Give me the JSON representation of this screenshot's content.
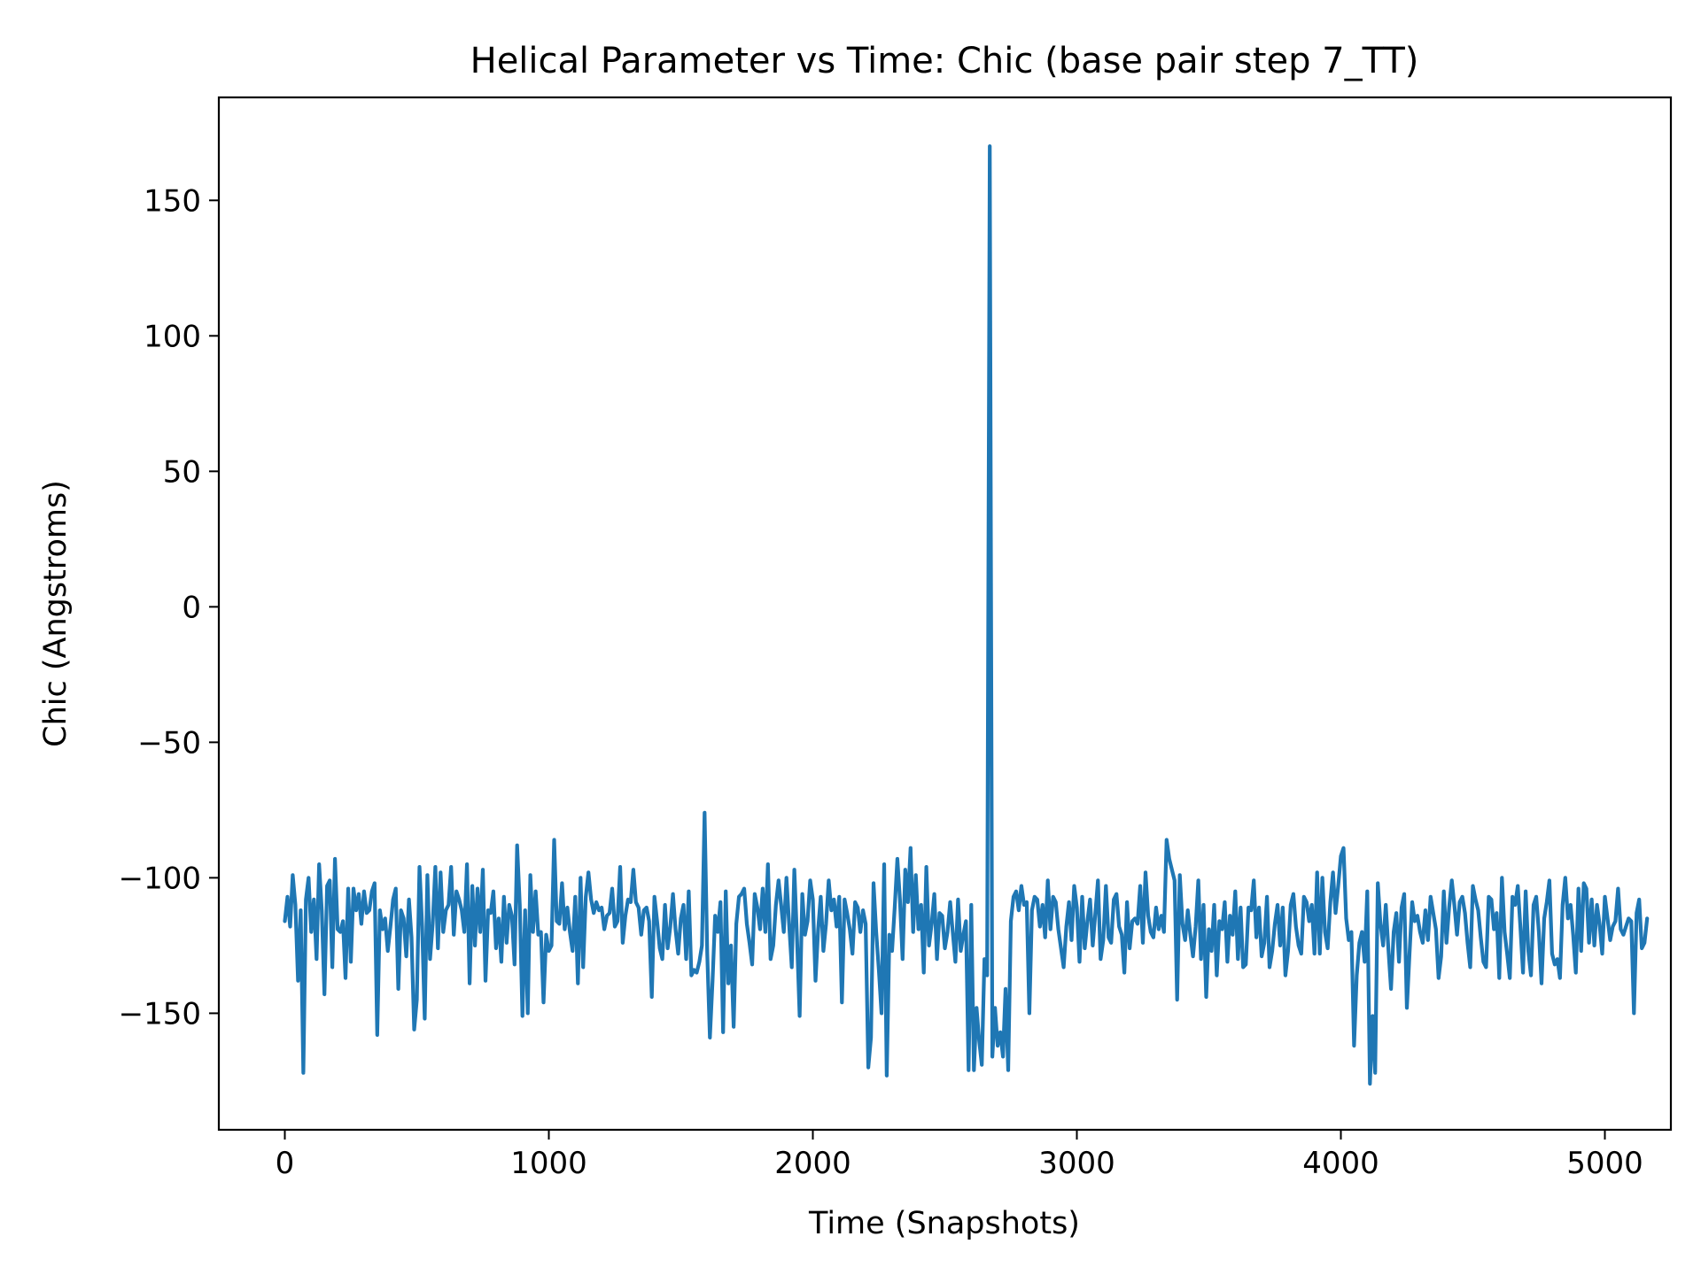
{
  "chart_data": {
    "type": "line",
    "title": "Helical Parameter vs Time: Chic (base pair step 7_TT)",
    "xlabel": "Time (Snapshots)",
    "ylabel": "Chic (Angstroms)",
    "xlim": [
      -250,
      5250
    ],
    "ylim": [
      -193,
      188
    ],
    "x_ticks": [
      0,
      1000,
      2000,
      3000,
      4000,
      5000
    ],
    "x_tick_labels": [
      "0",
      "1000",
      "2000",
      "3000",
      "4000",
      "5000"
    ],
    "y_ticks": [
      -150,
      -100,
      -50,
      0,
      50,
      100,
      150
    ],
    "y_tick_labels": [
      "−150",
      "−100",
      "−50",
      "0",
      "50",
      "100",
      "150"
    ],
    "grid": false,
    "legend": "none",
    "colors": {
      "line": "#1f77b4",
      "axes": "#000000",
      "background": "#ffffff"
    },
    "series": [
      {
        "x_start": 0,
        "x_step": 10,
        "values": [
          -116,
          -107,
          -118,
          -99,
          -110,
          -138,
          -112,
          -172,
          -108,
          -100,
          -120,
          -108,
          -130,
          -95,
          -112,
          -143,
          -103,
          -101,
          -133,
          -93,
          -119,
          -120,
          -116,
          -137,
          -104,
          -131,
          -104,
          -112,
          -106,
          -117,
          -105,
          -113,
          -112,
          -105,
          -102,
          -158,
          -112,
          -119,
          -115,
          -127,
          -118,
          -108,
          -104,
          -141,
          -112,
          -115,
          -129,
          -108,
          -122,
          -156,
          -145,
          -96,
          -118,
          -152,
          -99,
          -130,
          -117,
          -96,
          -126,
          -98,
          -120,
          -112,
          -110,
          -96,
          -121,
          -105,
          -108,
          -112,
          -120,
          -95,
          -139,
          -103,
          -125,
          -104,
          -120,
          -97,
          -138,
          -112,
          -113,
          -105,
          -126,
          -115,
          -131,
          -107,
          -124,
          -110,
          -114,
          -132,
          -88,
          -110,
          -151,
          -112,
          -150,
          -99,
          -120,
          -105,
          -121,
          -120,
          -146,
          -121,
          -127,
          -125,
          -86,
          -116,
          -117,
          -102,
          -119,
          -111,
          -120,
          -127,
          -107,
          -139,
          -100,
          -133,
          -107,
          -98,
          -108,
          -113,
          -109,
          -112,
          -111,
          -119,
          -114,
          -113,
          -104,
          -118,
          -116,
          -96,
          -124,
          -114,
          -108,
          -109,
          -97,
          -109,
          -111,
          -121,
          -112,
          -111,
          -116,
          -144,
          -107,
          -116,
          -126,
          -130,
          -110,
          -126,
          -118,
          -106,
          -119,
          -128,
          -115,
          -110,
          -130,
          -105,
          -136,
          -134,
          -135,
          -131,
          -125,
          -76,
          -128,
          -159,
          -138,
          -114,
          -120,
          -109,
          -157,
          -105,
          -139,
          -125,
          -155,
          -117,
          -107,
          -106,
          -104,
          -117,
          -124,
          -132,
          -106,
          -111,
          -119,
          -104,
          -120,
          -95,
          -130,
          -125,
          -110,
          -101,
          -110,
          -120,
          -100,
          -117,
          -133,
          -97,
          -122,
          -151,
          -106,
          -121,
          -116,
          -101,
          -108,
          -138,
          -119,
          -107,
          -127,
          -117,
          -101,
          -112,
          -108,
          -118,
          -107,
          -146,
          -108,
          -113,
          -119,
          -128,
          -109,
          -111,
          -120,
          -112,
          -117,
          -170,
          -159,
          -102,
          -120,
          -134,
          -150,
          -95,
          -173,
          -121,
          -127,
          -111,
          -93,
          -108,
          -130,
          -97,
          -109,
          -89,
          -120,
          -99,
          -119,
          -110,
          -135,
          -96,
          -125,
          -117,
          -106,
          -130,
          -113,
          -114,
          -126,
          -120,
          -109,
          -120,
          -131,
          -108,
          -127,
          -121,
          -116,
          -171,
          -110,
          -171,
          -148,
          -160,
          -169,
          -130,
          -136,
          170,
          -166,
          -148,
          -162,
          -157,
          -166,
          -141,
          -171,
          -116,
          -107,
          -105,
          -112,
          -103,
          -110,
          -109,
          -150,
          -112,
          -107,
          -108,
          -118,
          -110,
          -122,
          -101,
          -119,
          -107,
          -109,
          -119,
          -126,
          -133,
          -118,
          -109,
          -123,
          -103,
          -111,
          -131,
          -107,
          -126,
          -116,
          -108,
          -125,
          -113,
          -101,
          -130,
          -123,
          -103,
          -122,
          -124,
          -108,
          -106,
          -118,
          -121,
          -135,
          -109,
          -126,
          -116,
          -115,
          -117,
          -103,
          -124,
          -98,
          -114,
          -120,
          -122,
          -111,
          -119,
          -114,
          -120,
          -86,
          -93,
          -97,
          -101,
          -145,
          -99,
          -117,
          -123,
          -112,
          -121,
          -129,
          -118,
          -101,
          -130,
          -110,
          -144,
          -119,
          -127,
          -110,
          -136,
          -116,
          -119,
          -109,
          -131,
          -114,
          -121,
          -105,
          -130,
          -111,
          -133,
          -132,
          -111,
          -112,
          -101,
          -122,
          -111,
          -129,
          -124,
          -107,
          -133,
          -127,
          -117,
          -110,
          -125,
          -111,
          -136,
          -127,
          -110,
          -106,
          -118,
          -125,
          -128,
          -107,
          -109,
          -116,
          -110,
          -128,
          -98,
          -128,
          -100,
          -120,
          -126,
          -109,
          -98,
          -113,
          -103,
          -92,
          -89,
          -115,
          -123,
          -120,
          -162,
          -136,
          -124,
          -120,
          -131,
          -105,
          -176,
          -151,
          -172,
          -102,
          -117,
          -125,
          -110,
          -126,
          -141,
          -120,
          -113,
          -131,
          -111,
          -106,
          -148,
          -128,
          -109,
          -116,
          -114,
          -120,
          -124,
          -112,
          -123,
          -107,
          -113,
          -119,
          -137,
          -129,
          -105,
          -124,
          -111,
          -101,
          -110,
          -121,
          -109,
          -107,
          -113,
          -124,
          -133,
          -103,
          -108,
          -112,
          -122,
          -131,
          -133,
          -107,
          -108,
          -119,
          -113,
          -137,
          -100,
          -120,
          -128,
          -137,
          -107,
          -110,
          -103,
          -118,
          -135,
          -105,
          -127,
          -136,
          -110,
          -107,
          -120,
          -139,
          -115,
          -109,
          -101,
          -128,
          -132,
          -130,
          -137,
          -110,
          -100,
          -115,
          -110,
          -121,
          -135,
          -104,
          -127,
          -102,
          -104,
          -124,
          -108,
          -125,
          -110,
          -117,
          -128,
          -107,
          -115,
          -123,
          -118,
          -116,
          -104,
          -119,
          -121,
          -118,
          -115,
          -116,
          -150,
          -113,
          -108,
          -126,
          -124,
          -115
        ]
      }
    ]
  }
}
